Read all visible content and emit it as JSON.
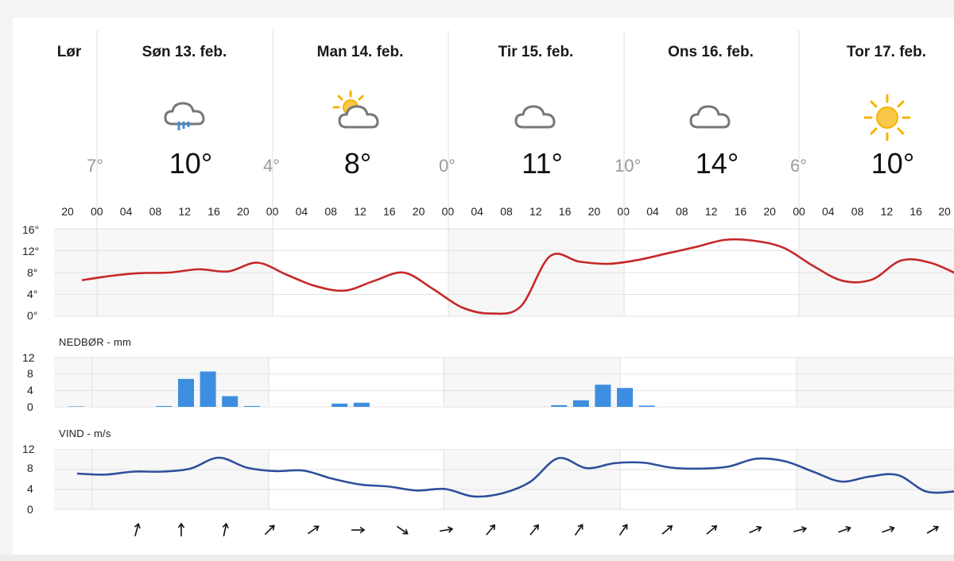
{
  "forecast": {
    "days": [
      {
        "label": "Lør"
      },
      {
        "label": "Søn 13. feb.",
        "min": "7°",
        "max": "10°",
        "icon": "cloud-rain-icon"
      },
      {
        "label": "Man 14. feb.",
        "min": "4°",
        "max": "8°",
        "icon": "partly-sunny-icon"
      },
      {
        "label": "Tir 15. feb.",
        "min": "0°",
        "max": "11°",
        "icon": "cloud-icon"
      },
      {
        "label": "Ons 16. feb.",
        "min": "10°",
        "max": "14°",
        "icon": "cloud-icon"
      },
      {
        "label": "Tor 17. feb.",
        "min": "6°",
        "max": "10°",
        "icon": "sun-icon"
      }
    ],
    "hours": [
      "20",
      "00",
      "04",
      "08",
      "12",
      "16",
      "20",
      "00",
      "04",
      "08",
      "12",
      "16",
      "20",
      "00",
      "04",
      "08",
      "12",
      "16",
      "20",
      "00",
      "04",
      "08",
      "12",
      "16",
      "20",
      "00",
      "04",
      "08",
      "12",
      "16",
      "20"
    ]
  },
  "temperature": {
    "y_labels": [
      "16°",
      "12°",
      "8°",
      "4°",
      "0°"
    ]
  },
  "precipitation": {
    "title": "NEDBØR - mm",
    "y_labels": [
      "12",
      "8",
      "4",
      "0"
    ]
  },
  "wind": {
    "title": "VIND - m/s",
    "y_labels": [
      "12",
      "8",
      "4",
      "0"
    ]
  },
  "colors": {
    "temperature_line": "#c62828",
    "precip_bar": "#3d8ee0",
    "wind_line": "#2f4f9c",
    "sun": "#f5b400",
    "cloud_stroke": "#777777",
    "rain": "#3d8ee0"
  },
  "chart_data": [
    {
      "type": "line",
      "title": "",
      "xlabel": "",
      "ylabel": "",
      "ylim": [
        0,
        16
      ],
      "y_ticks": [
        0,
        4,
        8,
        12,
        16
      ],
      "x_unit": "hour",
      "x": [
        "Lør 20",
        "Søn 00",
        "Søn 04",
        "Søn 08",
        "Søn 12",
        "Søn 16",
        "Søn 20",
        "Man 00",
        "Man 04",
        "Man 08",
        "Man 12",
        "Man 16",
        "Man 20",
        "Tir 00",
        "Tir 04",
        "Tir 08",
        "Tir 12",
        "Tir 16",
        "Tir 20",
        "Ons 00",
        "Ons 04",
        "Ons 08",
        "Ons 12",
        "Ons 16",
        "Ons 20",
        "Tor 00",
        "Tor 04",
        "Tor 08",
        "Tor 12",
        "Tor 16",
        "Tor 20"
      ],
      "series": [
        {
          "values": [
            6.6,
            7.4,
            7.9,
            8.0,
            8.6,
            8.2,
            9.8,
            7.6,
            5.5,
            4.7,
            6.5,
            8.0,
            5.0,
            1.6,
            0.5,
            1.8,
            11.0,
            10.0,
            9.6,
            10.3,
            11.5,
            12.7,
            14.0,
            13.8,
            12.5,
            9.2,
            6.5,
            6.7,
            10.2,
            9.8,
            7.5
          ]
        }
      ]
    },
    {
      "type": "bar",
      "title": "NEDBØR - mm",
      "ylim": [
        0,
        12
      ],
      "y_ticks": [
        0,
        4,
        8,
        12
      ],
      "x_unit": "hour",
      "values": [
        0.1,
        0,
        0,
        0,
        0.2,
        6.8,
        8.6,
        2.6,
        0.2,
        0,
        0,
        0,
        0.8,
        1.0,
        0,
        0,
        0,
        0,
        0,
        0,
        0,
        0,
        0.4,
        1.6,
        5.4,
        4.6,
        0.3,
        0,
        0,
        0,
        0,
        0,
        0,
        0,
        0,
        0,
        0,
        0,
        0,
        0,
        0,
        0
      ]
    },
    {
      "type": "line",
      "title": "VIND - m/s",
      "ylim": [
        0,
        12
      ],
      "y_ticks": [
        0,
        4,
        8,
        12
      ],
      "x_unit": "hour",
      "series": [
        {
          "values": [
            7.2,
            7.0,
            7.6,
            7.6,
            8.2,
            10.4,
            8.4,
            7.7,
            7.8,
            6.2,
            5.0,
            4.6,
            3.8,
            4.1,
            2.6,
            3.2,
            5.5,
            10.3,
            8.3,
            9.3,
            9.4,
            8.4,
            8.2,
            8.6,
            10.2,
            9.7,
            7.6,
            5.6,
            6.6,
            6.9,
            3.6,
            3.6
          ]
        }
      ]
    }
  ],
  "wind_directions": [
    {
      "icon": "wind-arrow-icon",
      "rotation_deg": 15
    },
    {
      "icon": "wind-arrow-icon",
      "rotation_deg": 0
    },
    {
      "icon": "wind-arrow-icon",
      "rotation_deg": 12
    },
    {
      "icon": "wind-arrow-icon",
      "rotation_deg": 45
    },
    {
      "icon": "wind-arrow-icon",
      "rotation_deg": 55
    },
    {
      "icon": "wind-arrow-icon",
      "rotation_deg": 90
    },
    {
      "icon": "wind-arrow-icon",
      "rotation_deg": 125
    },
    {
      "icon": "wind-arrow-icon",
      "rotation_deg": 80
    },
    {
      "icon": "wind-arrow-icon",
      "rotation_deg": 40
    },
    {
      "icon": "wind-arrow-icon",
      "rotation_deg": 40
    },
    {
      "icon": "wind-arrow-icon",
      "rotation_deg": 35
    },
    {
      "icon": "wind-arrow-icon",
      "rotation_deg": 35
    },
    {
      "icon": "wind-arrow-icon",
      "rotation_deg": 50
    },
    {
      "icon": "wind-arrow-icon",
      "rotation_deg": 50
    },
    {
      "icon": "wind-arrow-icon",
      "rotation_deg": 65
    },
    {
      "icon": "wind-arrow-icon",
      "rotation_deg": 75
    },
    {
      "icon": "wind-arrow-icon",
      "rotation_deg": 70
    },
    {
      "icon": "wind-arrow-icon",
      "rotation_deg": 70
    },
    {
      "icon": "wind-arrow-icon",
      "rotation_deg": 60
    }
  ]
}
